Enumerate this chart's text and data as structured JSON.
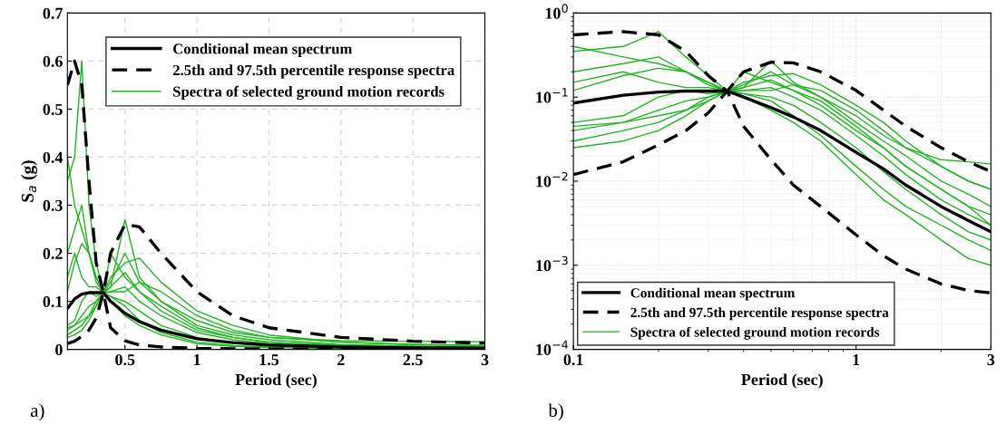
{
  "chart_data": [
    {
      "type": "line",
      "xlabel": "Period (sec)",
      "ylabel": "S$_{a}$ (g)",
      "annotations": [
        "a)"
      ],
      "xlim": [
        0.1,
        3
      ],
      "xticks": [
        0.5,
        1,
        1.5,
        2,
        2.5,
        3
      ],
      "ylim": [
        0,
        0.7
      ],
      "yticks": [
        0,
        0.1,
        0.2,
        0.3,
        0.4,
        0.5,
        0.6,
        0.7
      ],
      "grid": true,
      "legend": "top right",
      "x": [
        0.1,
        0.15,
        0.2,
        0.25,
        0.3,
        0.35,
        0.4,
        0.5,
        0.6,
        0.75,
        1.0,
        1.25,
        1.5,
        2.0,
        2.5,
        3.0
      ],
      "series": [
        {
          "name": "Spectra of selected ground motion records",
          "color": "#1fb51f",
          "values": [
            0.35,
            0.4,
            0.6,
            0.3,
            0.18,
            0.118,
            0.2,
            0.15,
            0.12,
            0.08,
            0.04,
            0.025,
            0.015,
            0.008,
            0.005,
            0.004
          ]
        },
        {
          "color": "#1fb51f",
          "values": [
            0.04,
            0.05,
            0.07,
            0.09,
            0.1,
            0.118,
            0.13,
            0.27,
            0.15,
            0.1,
            0.05,
            0.03,
            0.02,
            0.01,
            0.007,
            0.005
          ]
        },
        {
          "color": "#1fb51f",
          "values": [
            0.2,
            0.25,
            0.3,
            0.2,
            0.15,
            0.118,
            0.11,
            0.09,
            0.06,
            0.035,
            0.015,
            0.008,
            0.005,
            0.003,
            0.002,
            0.0015
          ]
        },
        {
          "color": "#1fb51f",
          "values": [
            0.025,
            0.03,
            0.04,
            0.06,
            0.09,
            0.118,
            0.15,
            0.18,
            0.19,
            0.14,
            0.08,
            0.05,
            0.03,
            0.015,
            0.01,
            0.008
          ]
        },
        {
          "color": "#1fb51f",
          "values": [
            0.12,
            0.18,
            0.22,
            0.2,
            0.14,
            0.118,
            0.12,
            0.13,
            0.1,
            0.07,
            0.035,
            0.02,
            0.012,
            0.006,
            0.004,
            0.003
          ]
        },
        {
          "color": "#1fb51f",
          "values": [
            0.05,
            0.06,
            0.1,
            0.12,
            0.11,
            0.118,
            0.1,
            0.07,
            0.05,
            0.03,
            0.012,
            0.006,
            0.004,
            0.002,
            0.0012,
            0.001
          ]
        },
        {
          "color": "#1fb51f",
          "values": [
            0.4,
            0.3,
            0.25,
            0.2,
            0.15,
            0.118,
            0.12,
            0.12,
            0.14,
            0.12,
            0.07,
            0.04,
            0.025,
            0.015,
            0.01,
            0.008
          ]
        },
        {
          "color": "#1fb51f",
          "values": [
            0.03,
            0.04,
            0.05,
            0.07,
            0.09,
            0.118,
            0.13,
            0.16,
            0.12,
            0.09,
            0.045,
            0.025,
            0.015,
            0.008,
            0.005,
            0.003
          ]
        },
        {
          "color": "#1fb51f",
          "values": [
            0.15,
            0.2,
            0.15,
            0.13,
            0.13,
            0.118,
            0.11,
            0.1,
            0.08,
            0.05,
            0.025,
            0.013,
            0.008,
            0.004,
            0.0025,
            0.002
          ]
        },
        {
          "color": "#1fb51f",
          "values": [
            0.045,
            0.05,
            0.06,
            0.07,
            0.1,
            0.118,
            0.14,
            0.2,
            0.14,
            0.1,
            0.06,
            0.035,
            0.025,
            0.018,
            0.017,
            0.016
          ]
        },
        {
          "name": "Conditional mean spectrum",
          "color": "#000000",
          "line_style": "solid",
          "values": [
            0.085,
            0.105,
            0.115,
            0.118,
            0.118,
            0.118,
            0.1,
            0.075,
            0.058,
            0.04,
            0.022,
            0.014,
            0.009,
            0.005,
            0.0034,
            0.0025
          ]
        },
        {
          "name": "2.5th and 97.5th percentile response spectra",
          "color": "#000000",
          "line_style": "dashed",
          "values": [
            0.55,
            0.6,
            0.55,
            0.35,
            0.18,
            0.118,
            0.2,
            0.26,
            0.255,
            0.2,
            0.12,
            0.07,
            0.045,
            0.025,
            0.017,
            0.013
          ]
        },
        {
          "color": "#000000",
          "line_style": "dashed",
          "values": [
            0.012,
            0.017,
            0.027,
            0.04,
            0.065,
            0.118,
            0.045,
            0.018,
            0.009,
            0.005,
            0.0023,
            0.0013,
            0.0009,
            0.0006,
            0.0005,
            0.00047
          ]
        }
      ]
    },
    {
      "type": "line",
      "xlabel": "Period (sec)",
      "annotations": [
        "b)"
      ],
      "log": "xy",
      "xlim": [
        0.1,
        3
      ],
      "xticks": [
        0.1,
        1,
        3
      ],
      "ylim": [
        0.0001,
        1
      ],
      "yticks": [
        {
          "value": 0.0001,
          "label": "10$^{−4}$"
        },
        {
          "value": 0.001,
          "label": "10$^{−3}$"
        },
        {
          "value": 0.01,
          "label": "10$^{−2}$"
        },
        {
          "value": 0.1,
          "label": "10$^{−1}$"
        },
        {
          "value": 1,
          "label": "10$^{0}$"
        }
      ],
      "grid": true,
      "legend": "bottom left",
      "x": [
        0.1,
        0.15,
        0.2,
        0.25,
        0.3,
        0.35,
        0.4,
        0.5,
        0.6,
        0.75,
        1.0,
        1.25,
        1.5,
        2.0,
        2.5,
        3.0
      ],
      "series": [
        {
          "name": "Spectra of selected ground motion records",
          "color": "#1fb51f",
          "values": [
            0.35,
            0.4,
            0.6,
            0.3,
            0.18,
            0.118,
            0.2,
            0.15,
            0.12,
            0.08,
            0.04,
            0.025,
            0.015,
            0.008,
            0.005,
            0.004
          ]
        },
        {
          "color": "#1fb51f",
          "values": [
            0.04,
            0.05,
            0.07,
            0.09,
            0.1,
            0.118,
            0.13,
            0.27,
            0.15,
            0.1,
            0.05,
            0.03,
            0.02,
            0.01,
            0.007,
            0.005
          ]
        },
        {
          "color": "#1fb51f",
          "values": [
            0.2,
            0.25,
            0.3,
            0.2,
            0.15,
            0.118,
            0.11,
            0.09,
            0.06,
            0.035,
            0.015,
            0.008,
            0.005,
            0.003,
            0.002,
            0.0015
          ]
        },
        {
          "color": "#1fb51f",
          "values": [
            0.025,
            0.03,
            0.04,
            0.06,
            0.09,
            0.118,
            0.15,
            0.18,
            0.19,
            0.14,
            0.08,
            0.05,
            0.03,
            0.015,
            0.01,
            0.008
          ]
        },
        {
          "color": "#1fb51f",
          "values": [
            0.12,
            0.18,
            0.22,
            0.2,
            0.14,
            0.118,
            0.12,
            0.13,
            0.1,
            0.07,
            0.035,
            0.02,
            0.012,
            0.006,
            0.004,
            0.003
          ]
        },
        {
          "color": "#1fb51f",
          "values": [
            0.05,
            0.06,
            0.1,
            0.12,
            0.11,
            0.118,
            0.1,
            0.07,
            0.05,
            0.03,
            0.012,
            0.006,
            0.004,
            0.002,
            0.0012,
            0.001
          ]
        },
        {
          "color": "#1fb51f",
          "values": [
            0.4,
            0.3,
            0.25,
            0.2,
            0.15,
            0.118,
            0.12,
            0.12,
            0.14,
            0.12,
            0.07,
            0.04,
            0.025,
            0.015,
            0.01,
            0.008
          ]
        },
        {
          "color": "#1fb51f",
          "values": [
            0.03,
            0.04,
            0.05,
            0.07,
            0.09,
            0.118,
            0.13,
            0.16,
            0.12,
            0.09,
            0.045,
            0.025,
            0.015,
            0.008,
            0.005,
            0.003
          ]
        },
        {
          "color": "#1fb51f",
          "values": [
            0.15,
            0.2,
            0.15,
            0.13,
            0.13,
            0.118,
            0.11,
            0.1,
            0.08,
            0.05,
            0.025,
            0.013,
            0.008,
            0.004,
            0.0025,
            0.002
          ]
        },
        {
          "color": "#1fb51f",
          "values": [
            0.045,
            0.05,
            0.06,
            0.07,
            0.1,
            0.118,
            0.14,
            0.2,
            0.14,
            0.1,
            0.06,
            0.035,
            0.025,
            0.018,
            0.017,
            0.016
          ]
        },
        {
          "name": "Conditional mean spectrum",
          "color": "#000000",
          "line_style": "solid",
          "values": [
            0.085,
            0.105,
            0.115,
            0.118,
            0.118,
            0.118,
            0.1,
            0.075,
            0.058,
            0.04,
            0.022,
            0.014,
            0.009,
            0.005,
            0.0034,
            0.0025
          ]
        },
        {
          "name": "2.5th and 97.5th percentile response spectra",
          "color": "#000000",
          "line_style": "dashed",
          "values": [
            0.55,
            0.6,
            0.55,
            0.35,
            0.18,
            0.118,
            0.2,
            0.26,
            0.255,
            0.2,
            0.12,
            0.07,
            0.045,
            0.025,
            0.017,
            0.013
          ]
        },
        {
          "color": "#000000",
          "line_style": "dashed",
          "values": [
            0.012,
            0.017,
            0.027,
            0.04,
            0.065,
            0.118,
            0.045,
            0.018,
            0.009,
            0.005,
            0.0023,
            0.0013,
            0.0009,
            0.0006,
            0.0005,
            0.00047
          ]
        }
      ]
    }
  ]
}
